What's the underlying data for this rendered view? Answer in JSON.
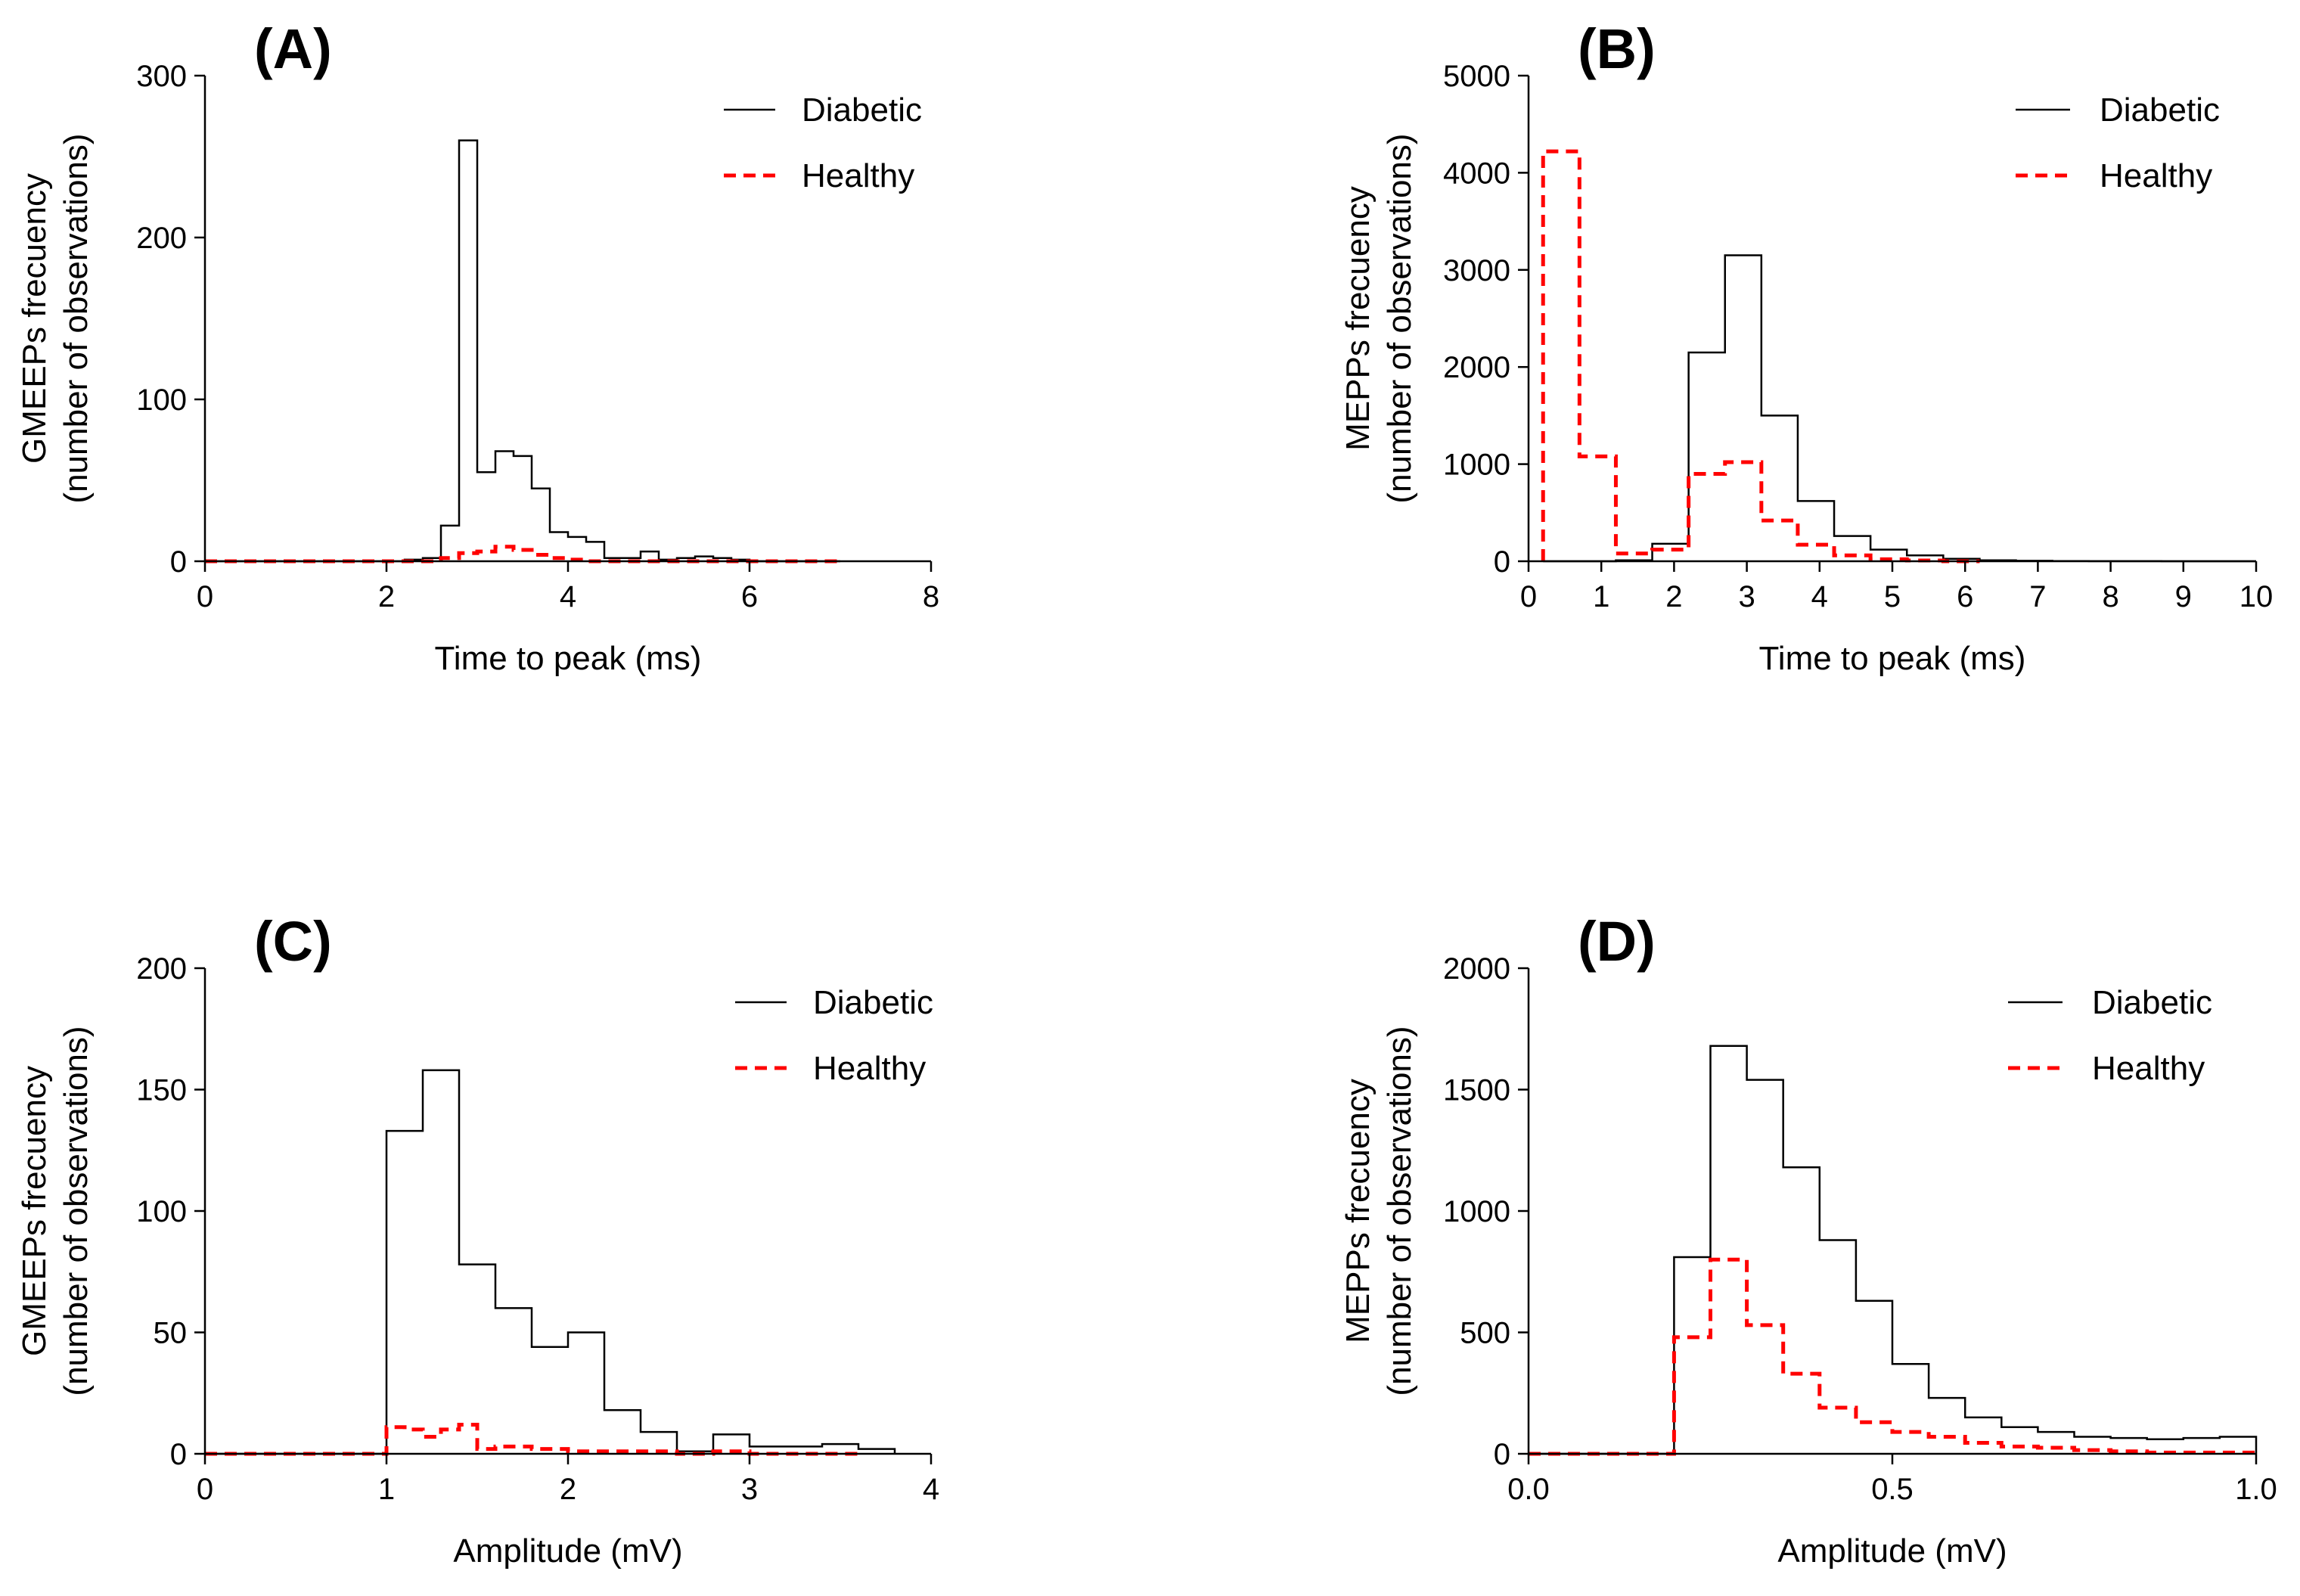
{
  "figure": {
    "legend": {
      "diabetic": "Diabetic",
      "healthy": "Healthy"
    },
    "colors": {
      "diabetic": "#000000",
      "healthy": "#ff0000"
    }
  },
  "chart_data": [
    {
      "id": "A",
      "panel_label": "(A)",
      "type": "histogram-step",
      "ylabel_line1": "GMEEPs frecuency",
      "ylabel_line2": "(number of observations)",
      "xlabel": "Time to peak  (ms)",
      "xlim": [
        0,
        8
      ],
      "ylim": [
        0,
        300
      ],
      "xticks": [
        0,
        2,
        4,
        6,
        8
      ],
      "xtick_labels": [
        "0",
        "2",
        "4",
        "6",
        "8"
      ],
      "yticks": [
        0,
        100,
        200,
        300
      ],
      "ytick_labels": [
        "0",
        "100",
        "200",
        "300"
      ],
      "series": [
        {
          "name": "Diabetic",
          "style": "solid",
          "x": [
            0,
            0.2,
            0.4,
            0.6,
            0.8,
            1.0,
            1.2,
            1.4,
            1.6,
            1.8,
            2.0,
            2.2,
            2.4,
            2.6,
            2.8,
            3.0,
            3.2,
            3.4,
            3.6,
            3.8,
            4.0,
            4.2,
            4.4,
            4.6,
            4.8,
            5.0,
            5.2,
            5.4,
            5.6,
            5.8,
            6.0,
            6.2,
            6.4,
            6.6,
            6.8,
            7.0
          ],
          "values": [
            0,
            0,
            0,
            0,
            0,
            0,
            0,
            0,
            0,
            0,
            0,
            1,
            2,
            22,
            260,
            55,
            68,
            65,
            45,
            18,
            15,
            12,
            2,
            2,
            6,
            1,
            2,
            3,
            2,
            1,
            0,
            0,
            0,
            0,
            0
          ]
        },
        {
          "name": "Healthy",
          "style": "dashed",
          "x": [
            0,
            0.2,
            0.4,
            0.6,
            0.8,
            1.0,
            1.2,
            1.4,
            1.6,
            1.8,
            2.0,
            2.2,
            2.4,
            2.6,
            2.8,
            3.0,
            3.2,
            3.4,
            3.6,
            3.8,
            4.0,
            4.2,
            4.4,
            4.6,
            4.8,
            5.0,
            5.2,
            5.4,
            5.6,
            5.8,
            6.0,
            6.2,
            6.4,
            6.6,
            6.8,
            7.0
          ],
          "values": [
            0,
            0,
            0,
            0,
            0,
            0,
            0,
            0,
            0,
            0,
            0,
            0,
            0,
            2,
            5,
            6,
            9,
            7,
            4,
            2,
            1,
            0,
            0,
            0,
            0,
            0,
            0,
            0,
            0,
            0,
            0,
            0,
            0,
            0,
            0
          ]
        }
      ]
    },
    {
      "id": "B",
      "panel_label": "(B)",
      "type": "histogram-step",
      "ylabel_line1": "MEPPs frecuency",
      "ylabel_line2": "(number of observations)",
      "xlabel": "Time to peak  (ms)",
      "xlim": [
        0,
        10
      ],
      "ylim": [
        0,
        5000
      ],
      "xticks": [
        0,
        1,
        2,
        3,
        4,
        5,
        6,
        7,
        8,
        9,
        10
      ],
      "xtick_labels": [
        "0",
        "1",
        "2",
        "3",
        "4",
        "5",
        "6",
        "7",
        "8",
        "9",
        "10"
      ],
      "yticks": [
        0,
        1000,
        2000,
        3000,
        4000,
        5000
      ],
      "ytick_labels": [
        "0",
        "1000",
        "2000",
        "3000",
        "4000",
        "5000"
      ],
      "series": [
        {
          "name": "Diabetic",
          "style": "solid",
          "x": [
            0.2,
            0.7,
            1.2,
            1.7,
            2.2,
            2.7,
            3.2,
            3.7,
            4.2,
            4.7,
            5.2,
            5.7,
            6.2,
            6.7,
            7.2,
            7.7,
            8.2,
            8.7,
            9.2,
            9.7,
            10.0
          ],
          "values": [
            0,
            0,
            10,
            180,
            2150,
            3150,
            1500,
            620,
            260,
            120,
            60,
            25,
            10,
            5,
            2,
            1,
            1,
            0,
            0,
            0
          ]
        },
        {
          "name": "Healthy",
          "style": "dashed",
          "x": [
            0.2,
            0.7,
            1.2,
            1.7,
            2.2,
            2.7,
            3.2,
            3.7,
            4.2,
            4.7,
            5.2,
            5.7,
            6.2
          ],
          "values": [
            4220,
            1080,
            80,
            120,
            900,
            1020,
            420,
            170,
            60,
            20,
            8,
            0
          ]
        }
      ]
    },
    {
      "id": "C",
      "panel_label": "(C)",
      "type": "histogram-step",
      "ylabel_line1": "GMEEPs frecuency",
      "ylabel_line2": "(number of observations)",
      "xlabel": "Amplitude (mV)",
      "xlim": [
        0,
        4
      ],
      "ylim": [
        0,
        200
      ],
      "xticks": [
        0,
        1,
        2,
        3,
        4
      ],
      "xtick_labels": [
        "0",
        "1",
        "2",
        "3",
        "4"
      ],
      "yticks": [
        0,
        50,
        100,
        150,
        200
      ],
      "ytick_labels": [
        "0",
        "50",
        "100",
        "150",
        "200"
      ],
      "series": [
        {
          "name": "Diabetic",
          "style": "solid",
          "x": [
            0,
            0.2,
            0.4,
            0.6,
            0.8,
            1.0,
            1.2,
            1.4,
            1.6,
            1.8,
            2.0,
            2.2,
            2.4,
            2.6,
            2.8,
            3.0,
            3.2,
            3.4,
            3.6,
            3.8
          ],
          "values": [
            0,
            0,
            0,
            0,
            0,
            133,
            158,
            78,
            60,
            44,
            50,
            18,
            9,
            1,
            8,
            3,
            3,
            4,
            2
          ]
        },
        {
          "name": "Healthy",
          "style": "dashed",
          "x": [
            0,
            0.2,
            0.4,
            0.6,
            0.8,
            1.0,
            1.1,
            1.2,
            1.3,
            1.4,
            1.5,
            1.6,
            1.8,
            2.0,
            2.2,
            2.4,
            2.6,
            2.8,
            3.0,
            3.2,
            3.4,
            3.6
          ],
          "values": [
            0,
            0,
            0,
            0,
            0,
            11,
            10,
            7,
            10,
            12,
            2,
            3,
            2,
            1,
            1,
            1,
            0,
            1,
            0,
            0,
            0
          ]
        }
      ]
    },
    {
      "id": "D",
      "panel_label": "(D)",
      "type": "histogram-step",
      "ylabel_line1": "MEPPs frecuency",
      "ylabel_line2": "(number of observations)",
      "xlabel": "Amplitude (mV)",
      "xlim": [
        0,
        1.0
      ],
      "ylim": [
        0,
        2000
      ],
      "xticks": [
        0,
        0.5,
        1.0
      ],
      "xtick_labels": [
        "0.0",
        "0.5",
        "1.0"
      ],
      "yticks": [
        0,
        500,
        1000,
        1500,
        2000
      ],
      "ytick_labels": [
        "0",
        "500",
        "1000",
        "1500",
        "2000"
      ],
      "series": [
        {
          "name": "Diabetic",
          "style": "solid",
          "x": [
            0,
            0.05,
            0.1,
            0.15,
            0.2,
            0.25,
            0.3,
            0.35,
            0.4,
            0.45,
            0.5,
            0.55,
            0.6,
            0.65,
            0.7,
            0.75,
            0.8,
            0.85,
            0.9,
            0.95,
            1.0
          ],
          "values": [
            0,
            0,
            0,
            0,
            810,
            1680,
            1540,
            1180,
            880,
            630,
            370,
            230,
            150,
            110,
            90,
            70,
            65,
            60,
            65,
            70
          ]
        },
        {
          "name": "Healthy",
          "style": "dashed",
          "x": [
            0,
            0.05,
            0.1,
            0.15,
            0.2,
            0.25,
            0.3,
            0.35,
            0.4,
            0.45,
            0.5,
            0.55,
            0.6,
            0.65,
            0.7,
            0.75,
            0.8,
            0.85,
            0.9,
            0.95,
            1.0
          ],
          "values": [
            0,
            0,
            0,
            0,
            480,
            800,
            530,
            330,
            190,
            130,
            90,
            70,
            45,
            30,
            25,
            15,
            10,
            5,
            5,
            5
          ]
        }
      ]
    }
  ]
}
